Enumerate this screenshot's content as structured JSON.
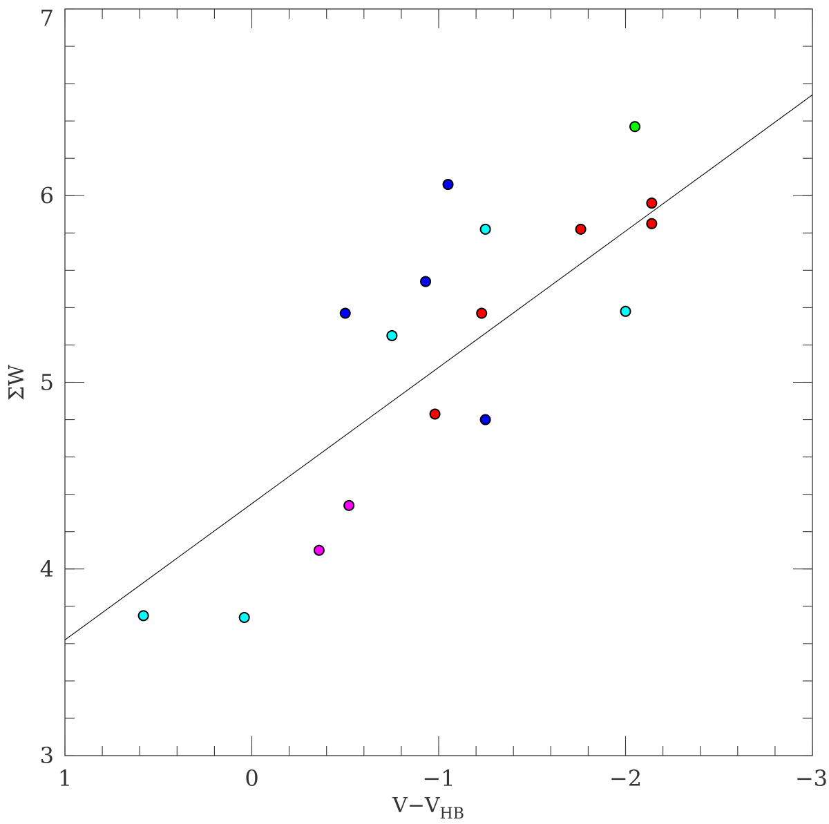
{
  "chart_data": {
    "type": "scatter",
    "title": "",
    "xlabel": "V−V",
    "xlabel_sub": "HB",
    "ylabel": "ΣW",
    "xlim": [
      1,
      -3
    ],
    "ylim": [
      3,
      7
    ],
    "x_reversed": true,
    "grid": false,
    "x_ticks": [
      {
        "value": 1,
        "label": "1"
      },
      {
        "value": 0,
        "label": "0"
      },
      {
        "value": -1,
        "label": "−1"
      },
      {
        "value": -2,
        "label": "−2"
      },
      {
        "value": -3,
        "label": "−3"
      }
    ],
    "y_ticks": [
      {
        "value": 3,
        "label": "3"
      },
      {
        "value": 4,
        "label": "4"
      },
      {
        "value": 5,
        "label": "5"
      },
      {
        "value": 6,
        "label": "6"
      },
      {
        "value": 7,
        "label": "7"
      }
    ],
    "x_minor_step": 0.2,
    "y_minor_step": 0.2,
    "fit_line": {
      "x": [
        1,
        -3
      ],
      "y": [
        3.62,
        6.54
      ]
    },
    "colors": {
      "cyan": "#00ffff",
      "blue": "#0000ff",
      "red": "#ff0000",
      "magenta": "#ff00ff",
      "green": "#00ff00"
    },
    "series": [
      {
        "color": "cyan",
        "points": [
          {
            "x": 0.58,
            "y": 3.75
          },
          {
            "x": 0.04,
            "y": 3.74
          },
          {
            "x": -0.75,
            "y": 5.25
          },
          {
            "x": -1.25,
            "y": 5.82
          },
          {
            "x": -2.0,
            "y": 5.38
          }
        ]
      },
      {
        "color": "blue",
        "points": [
          {
            "x": -0.5,
            "y": 5.37
          },
          {
            "x": -0.93,
            "y": 5.54
          },
          {
            "x": -1.05,
            "y": 6.06
          },
          {
            "x": -1.25,
            "y": 4.8
          }
        ]
      },
      {
        "color": "red",
        "points": [
          {
            "x": -0.98,
            "y": 4.83
          },
          {
            "x": -1.23,
            "y": 5.37
          },
          {
            "x": -1.76,
            "y": 5.82
          },
          {
            "x": -2.14,
            "y": 5.96
          },
          {
            "x": -2.14,
            "y": 5.85
          }
        ]
      },
      {
        "color": "magenta",
        "points": [
          {
            "x": -0.36,
            "y": 4.1
          },
          {
            "x": -0.52,
            "y": 4.34
          }
        ]
      },
      {
        "color": "green",
        "points": [
          {
            "x": -2.05,
            "y": 6.37
          }
        ]
      }
    ]
  }
}
